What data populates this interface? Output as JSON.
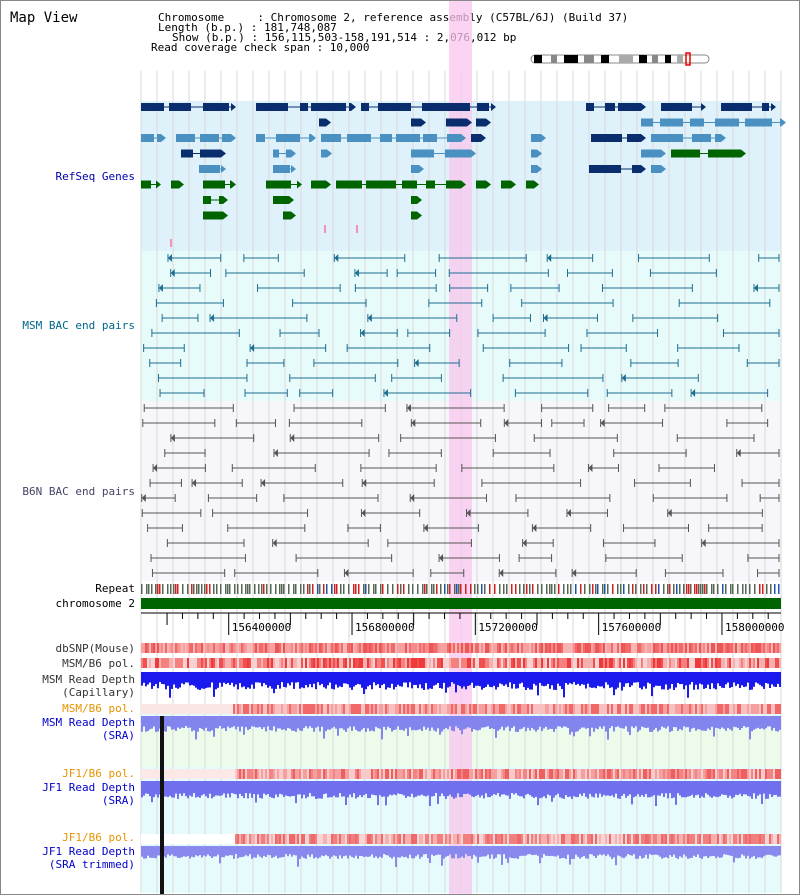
{
  "map_view": {
    "title": "Map View",
    "header": {
      "chromosome": "Chromosome     : Chromosome 2, reference assembly (C57BL/6J) (Build 37)",
      "length": "Length (b.p.) : 181,748,087",
      "show": "Show (b.p.) : 156,115,503-158,191,514 : 2,076,012 bp",
      "coverage": "Read coverage check span : 10,000"
    },
    "axis": {
      "ticks": [
        {
          "value": 156400000,
          "label": "156400000"
        },
        {
          "value": 156800000,
          "label": "156800000"
        },
        {
          "value": 157200000,
          "label": "157200000"
        },
        {
          "value": 157600000,
          "label": "157600000"
        },
        {
          "value": 158000000,
          "label": "158000000"
        }
      ],
      "start": 156115503,
      "end": 158191514
    },
    "tracks": [
      {
        "id": "refseq",
        "label": "RefSeq Genes",
        "color": "#0000aa"
      },
      {
        "id": "msm-bac",
        "label": "MSM BAC end pairs",
        "color": "#006688"
      },
      {
        "id": "b6n-bac",
        "label": "B6N BAC end pairs",
        "color": "#444466"
      },
      {
        "id": "repeat",
        "label": "Repeat",
        "color": "#000000"
      },
      {
        "id": "chromosome",
        "label": "chromosome 2",
        "color": "#000000"
      },
      {
        "id": "dbsnp",
        "label": "dbSNP(Mouse)",
        "color": "#333333"
      },
      {
        "id": "msm-b6-pol-1",
        "label": "MSM/B6 pol.",
        "color": "#333333"
      },
      {
        "id": "msm-depth-cap-1",
        "label": "MSM Read Depth",
        "color": "#333333"
      },
      {
        "id": "msm-depth-cap-2",
        "label": "(Capillary)",
        "color": "#333333"
      },
      {
        "id": "msm-b6-pol-2",
        "label": "MSM/B6 pol.",
        "color": "#e69500"
      },
      {
        "id": "msm-depth-sra-1",
        "label": "MSM Read Depth",
        "color": "#0000cc"
      },
      {
        "id": "msm-depth-sra-2",
        "label": "(SRA)",
        "color": "#0000cc"
      },
      {
        "id": "jf1-b6-pol-1",
        "label": "JF1/B6 pol.",
        "color": "#e69500"
      },
      {
        "id": "jf1-depth-sra-1",
        "label": "JF1 Read Depth",
        "color": "#0000cc"
      },
      {
        "id": "jf1-depth-sra-2",
        "label": "(SRA)",
        "color": "#0000cc"
      },
      {
        "id": "jf1-b6-pol-2",
        "label": "JF1/B6 pol.",
        "color": "#e69500"
      },
      {
        "id": "jf1-depth-trim-1",
        "label": "JF1 Read Depth",
        "color": "#0000cc"
      },
      {
        "id": "jf1-depth-trim-2",
        "label": "(SRA trimmed)",
        "color": "#0000cc"
      }
    ],
    "highlight_range": [
      156960000,
      157030000
    ]
  }
}
